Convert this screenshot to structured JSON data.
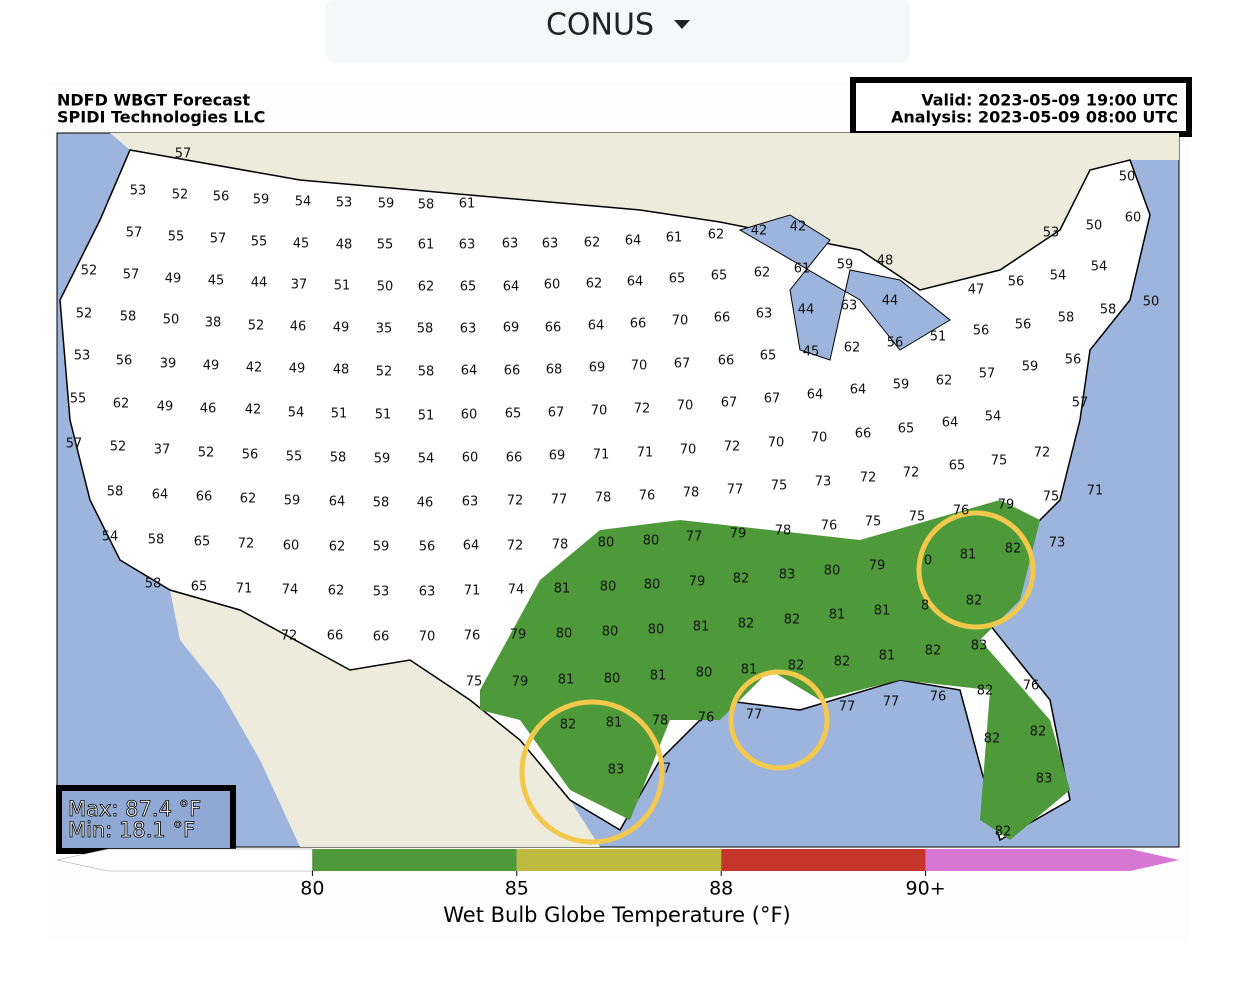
{
  "selector": {
    "label": "CONUS"
  },
  "header": {
    "title": "NDFD WBGT Forecast",
    "source": "SPIDI Technologies LLC",
    "valid": "Valid: 2023-05-09 19:00 UTC",
    "analysis": "Analysis: 2023-05-09 08:00 UTC"
  },
  "stats": {
    "max": "Max: 87.4 °F",
    "min": "Min: 18.1 °F"
  },
  "colorbar": {
    "label": "Wet Bulb Globe Temperature (°F)",
    "colors": [
      "#ffffff",
      "#4e9a3a",
      "#bcbb3f",
      "#c5352c",
      "#d678d1"
    ],
    "ticks": [
      {
        "value": 80,
        "label": "80"
      },
      {
        "value": 85,
        "label": "85"
      },
      {
        "value": 88,
        "label": "88"
      },
      {
        "value": 90,
        "label": "90+"
      }
    ]
  },
  "map": {
    "labels": [
      57,
      53,
      52,
      56,
      59,
      54,
      53,
      59,
      58,
      61,
      57,
      55,
      57,
      55,
      45,
      48,
      55,
      61,
      63,
      63,
      63,
      62,
      64,
      61,
      62,
      42,
      42,
      50,
      52,
      57,
      49,
      45,
      44,
      37,
      51,
      50,
      62,
      65,
      64,
      60,
      62,
      64,
      65,
      65,
      62,
      61,
      59,
      48,
      60,
      50,
      53,
      52,
      58,
      50,
      38,
      52,
      46,
      49,
      35,
      58,
      63,
      69,
      66,
      64,
      66,
      70,
      66,
      63,
      44,
      63,
      44,
      54,
      54,
      47,
      56,
      53,
      56,
      39,
      49,
      42,
      49,
      48,
      52,
      58,
      64,
      66,
      68,
      69,
      70,
      67,
      66,
      65,
      45,
      62,
      56,
      51,
      56,
      56,
      58,
      58,
      50,
      55,
      62,
      49,
      46,
      42,
      54,
      51,
      51,
      51,
      60,
      65,
      67,
      70,
      72,
      70,
      67,
      67,
      64,
      64,
      59,
      62,
      57,
      59,
      56,
      57,
      57,
      52,
      37,
      52,
      56,
      55,
      58,
      59,
      54,
      60,
      66,
      69,
      71,
      71,
      70,
      72,
      70,
      70,
      66,
      65,
      64,
      54,
      75,
      58,
      64,
      66,
      62,
      59,
      64,
      58,
      46,
      63,
      72,
      77,
      78,
      76,
      78,
      77,
      75,
      73,
      72,
      72,
      65,
      72,
      71,
      75,
      54,
      58,
      65,
      72,
      60,
      62,
      59,
      56,
      64,
      72,
      78,
      80,
      80,
      77,
      79,
      78,
      76,
      75,
      75,
      76,
      79,
      73,
      58,
      65,
      71,
      74,
      62,
      53,
      63,
      71,
      74,
      81,
      80,
      80,
      79,
      82,
      83,
      80,
      79,
      0,
      81,
      82,
      72,
      66,
      66,
      70,
      76,
      79,
      80,
      80,
      80,
      81,
      82,
      82,
      81,
      81,
      8,
      82,
      75,
      79,
      81,
      80,
      81,
      80,
      81,
      82,
      82,
      81,
      82,
      83,
      82,
      81,
      78,
      76,
      77,
      77,
      77,
      76,
      82,
      76,
      83,
      7,
      82,
      82,
      83,
      82
    ]
  }
}
